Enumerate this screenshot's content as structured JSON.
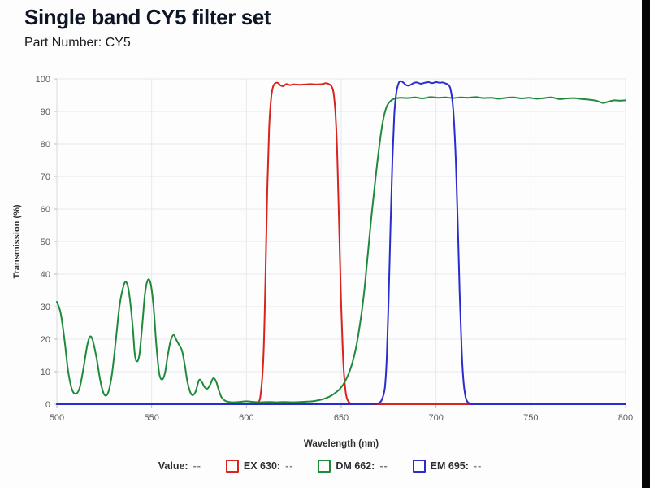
{
  "page": {
    "title": "Single band CY5 filter set",
    "subtitle": "Part Number: CY5"
  },
  "legend": {
    "value_label": "Value:",
    "value": "--",
    "items": [
      {
        "label": "EX 630:",
        "value": "--",
        "color": "#d8231f"
      },
      {
        "label": "DM 662:",
        "value": "--",
        "color": "#1f8a3a"
      },
      {
        "label": "EM 695:",
        "value": "--",
        "color": "#2a2ccd"
      }
    ]
  },
  "colors": {
    "grid": "#e9e9ec",
    "axis_x": "#b9bcc2",
    "axis_y": "#d9dade",
    "tick": "#b9bcc2",
    "tick_label": "#5a5c61",
    "axis_title": "#2f3135",
    "background": "#fdfdfe",
    "edge_strip": "#060606"
  },
  "chart_data": {
    "type": "line",
    "title": "Single band CY5 filter set",
    "xlabel": "Wavelength (nm)",
    "ylabel": "Transmission (%)",
    "xlim": [
      500,
      800
    ],
    "ylim": [
      0,
      100
    ],
    "x_ticks": [
      500,
      550,
      600,
      650,
      700,
      750,
      800
    ],
    "y_ticks": [
      0,
      10,
      20,
      30,
      40,
      50,
      60,
      70,
      80,
      90,
      100
    ],
    "grid": true,
    "legend_position": "bottom",
    "series": [
      {
        "name": "EX 630",
        "color": "#d8231f",
        "points": [
          [
            500,
            0
          ],
          [
            540,
            0
          ],
          [
            570,
            0
          ],
          [
            590,
            0
          ],
          [
            600,
            0
          ],
          [
            604,
            0.1
          ],
          [
            606,
            0.5
          ],
          [
            607.5,
            3
          ],
          [
            609,
            15
          ],
          [
            610,
            38
          ],
          [
            611,
            66
          ],
          [
            612,
            85
          ],
          [
            613,
            94
          ],
          [
            614,
            97.5
          ],
          [
            615,
            98.6
          ],
          [
            616.5,
            98.8
          ],
          [
            618,
            98.0
          ],
          [
            619.5,
            97.8
          ],
          [
            621,
            98.4
          ],
          [
            623,
            98.1
          ],
          [
            625,
            98.3
          ],
          [
            628,
            98.2
          ],
          [
            631,
            98.3
          ],
          [
            634,
            98.4
          ],
          [
            637,
            98.3
          ],
          [
            640,
            98.4
          ],
          [
            642,
            98.7
          ],
          [
            643.5,
            98.4
          ],
          [
            645,
            97.6
          ],
          [
            646,
            95.5
          ],
          [
            647,
            89
          ],
          [
            648,
            75
          ],
          [
            649,
            52
          ],
          [
            650,
            30
          ],
          [
            651,
            14
          ],
          [
            652,
            5.5
          ],
          [
            653,
            1.8
          ],
          [
            654.5,
            0.4
          ],
          [
            656,
            0.1
          ],
          [
            660,
            0
          ],
          [
            680,
            0
          ],
          [
            700,
            0
          ],
          [
            720,
            0
          ],
          [
            750,
            0
          ],
          [
            775,
            0
          ],
          [
            800,
            0
          ]
        ]
      },
      {
        "name": "DM 662",
        "color": "#1f8a3a",
        "points": [
          [
            500,
            31.5
          ],
          [
            502,
            28
          ],
          [
            504,
            20
          ],
          [
            506,
            10
          ],
          [
            508,
            4.5
          ],
          [
            510,
            3.2
          ],
          [
            512,
            5
          ],
          [
            514,
            11
          ],
          [
            516,
            18
          ],
          [
            517.5,
            20.8
          ],
          [
            519,
            19.5
          ],
          [
            521,
            14
          ],
          [
            523,
            7
          ],
          [
            525,
            3
          ],
          [
            527,
            3.5
          ],
          [
            529,
            9
          ],
          [
            531,
            19
          ],
          [
            533,
            30
          ],
          [
            535,
            36
          ],
          [
            536.5,
            37.6
          ],
          [
            538,
            34.5
          ],
          [
            540,
            24
          ],
          [
            541,
            16
          ],
          [
            542,
            13.2
          ],
          [
            543.5,
            15
          ],
          [
            545,
            24
          ],
          [
            546.5,
            34
          ],
          [
            548,
            38.2
          ],
          [
            549.5,
            37
          ],
          [
            551,
            30
          ],
          [
            552.5,
            18
          ],
          [
            554,
            9.5
          ],
          [
            555.5,
            7.6
          ],
          [
            557,
            9.5
          ],
          [
            558.5,
            15
          ],
          [
            560,
            19.5
          ],
          [
            561.5,
            21.3
          ],
          [
            563,
            19.8
          ],
          [
            564.5,
            18.2
          ],
          [
            566,
            16.5
          ],
          [
            567.5,
            12
          ],
          [
            569,
            6.5
          ],
          [
            571,
            3
          ],
          [
            573,
            3.6
          ],
          [
            575,
            7.4
          ],
          [
            576.5,
            6.8
          ],
          [
            578,
            5.2
          ],
          [
            579.5,
            4.8
          ],
          [
            581,
            6.2
          ],
          [
            582.5,
            8.0
          ],
          [
            584,
            7.0
          ],
          [
            585.5,
            4.2
          ],
          [
            587,
            2.0
          ],
          [
            589,
            1.0
          ],
          [
            592,
            0.6
          ],
          [
            596,
            0.7
          ],
          [
            600,
            0.9
          ],
          [
            604,
            0.7
          ],
          [
            608,
            0.6
          ],
          [
            612,
            0.7
          ],
          [
            616,
            0.6
          ],
          [
            620,
            0.7
          ],
          [
            624,
            0.6
          ],
          [
            628,
            0.7
          ],
          [
            632,
            0.8
          ],
          [
            636,
            1.0
          ],
          [
            640,
            1.5
          ],
          [
            644,
            2.4
          ],
          [
            648,
            4
          ],
          [
            651,
            6
          ],
          [
            654,
            9.5
          ],
          [
            656,
            13
          ],
          [
            658,
            18
          ],
          [
            660,
            25
          ],
          [
            662,
            34
          ],
          [
            664,
            46
          ],
          [
            666,
            58
          ],
          [
            668,
            69
          ],
          [
            670,
            79
          ],
          [
            672,
            87
          ],
          [
            674,
            91.5
          ],
          [
            676,
            93.2
          ],
          [
            678,
            93.9
          ],
          [
            681,
            94.2
          ],
          [
            685,
            94.1
          ],
          [
            689,
            94.3
          ],
          [
            693,
            94.0
          ],
          [
            697,
            94.4
          ],
          [
            701,
            94.2
          ],
          [
            705,
            94.3
          ],
          [
            709,
            94.1
          ],
          [
            713,
            94.3
          ],
          [
            717,
            94.2
          ],
          [
            721,
            94.4
          ],
          [
            725,
            94.1
          ],
          [
            729,
            94.2
          ],
          [
            733,
            93.9
          ],
          [
            737,
            94.2
          ],
          [
            741,
            94.3
          ],
          [
            745,
            94.0
          ],
          [
            749,
            94.2
          ],
          [
            753,
            93.9
          ],
          [
            757,
            94.1
          ],
          [
            761,
            94.3
          ],
          [
            765,
            93.8
          ],
          [
            769,
            94.0
          ],
          [
            773,
            94.1
          ],
          [
            777,
            93.8
          ],
          [
            781,
            93.6
          ],
          [
            785,
            93.2
          ],
          [
            788,
            92.6
          ],
          [
            791,
            93.0
          ],
          [
            794,
            93.4
          ],
          [
            797,
            93.3
          ],
          [
            800,
            93.4
          ]
        ]
      },
      {
        "name": "EM 695",
        "color": "#2a2ccd",
        "points": [
          [
            500,
            0
          ],
          [
            540,
            0
          ],
          [
            580,
            0
          ],
          [
            620,
            0
          ],
          [
            650,
            0
          ],
          [
            660,
            0
          ],
          [
            668,
            0.1
          ],
          [
            670,
            0.4
          ],
          [
            671.5,
            1.5
          ],
          [
            673,
            5
          ],
          [
            674,
            14
          ],
          [
            675,
            32
          ],
          [
            676,
            55
          ],
          [
            677,
            75
          ],
          [
            678,
            89
          ],
          [
            679,
            95.5
          ],
          [
            680,
            98.2
          ],
          [
            681,
            99.3
          ],
          [
            682.5,
            99.0
          ],
          [
            684,
            98.2
          ],
          [
            685.5,
            97.9
          ],
          [
            687,
            98.3
          ],
          [
            688.5,
            98.8
          ],
          [
            690,
            98.9
          ],
          [
            692,
            98.5
          ],
          [
            694,
            98.8
          ],
          [
            696,
            99.0
          ],
          [
            698,
            98.7
          ],
          [
            700,
            99.0
          ],
          [
            702,
            98.8
          ],
          [
            703.5,
            98.9
          ],
          [
            705,
            98.6
          ],
          [
            706.5,
            98.2
          ],
          [
            707.5,
            97.2
          ],
          [
            708.5,
            94
          ],
          [
            709.5,
            87
          ],
          [
            710.5,
            74
          ],
          [
            711.5,
            55
          ],
          [
            712.5,
            34
          ],
          [
            713.5,
            17
          ],
          [
            714.5,
            7
          ],
          [
            715.5,
            2.5
          ],
          [
            716.5,
            0.8
          ],
          [
            718,
            0.2
          ],
          [
            720,
            0
          ],
          [
            740,
            0
          ],
          [
            760,
            0
          ],
          [
            780,
            0
          ],
          [
            800,
            0
          ]
        ]
      }
    ]
  }
}
